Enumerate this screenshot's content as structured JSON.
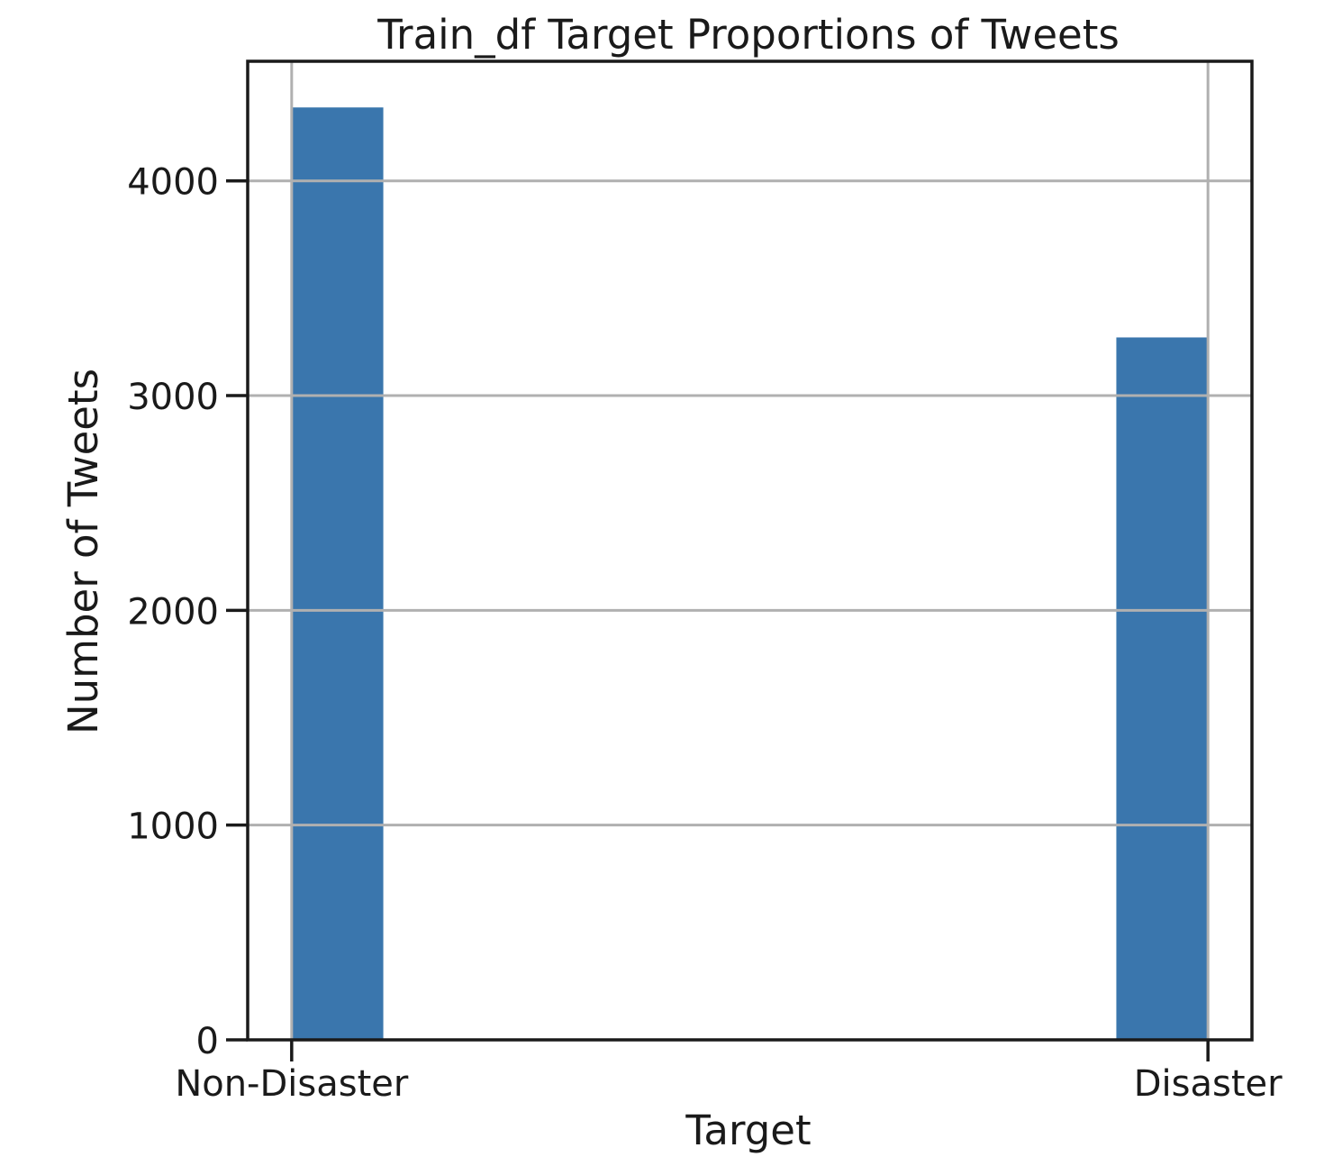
{
  "chart_data": {
    "type": "bar",
    "title": "Train_df Target Proportions of Tweets",
    "xlabel": "Target",
    "ylabel": "Number of Tweets",
    "x_ticks": [
      {
        "value": 0,
        "label": "Non-Disaster"
      },
      {
        "value": 1,
        "label": "Disaster"
      }
    ],
    "y_ticks": [
      0,
      1000,
      2000,
      3000,
      4000
    ],
    "xlim": [
      -0.048,
      1.048
    ],
    "ylim": [
      0,
      4557
    ],
    "bars": [
      {
        "x_start": 0.0,
        "x_end": 0.1,
        "value": 4342
      },
      {
        "x_start": 0.9,
        "x_end": 1.0,
        "value": 3271
      }
    ],
    "grid": true,
    "legend": "none",
    "bar_color": "#3a76ad",
    "grid_color": "#b0b0b0",
    "axis_color": "#1a1a1a"
  }
}
